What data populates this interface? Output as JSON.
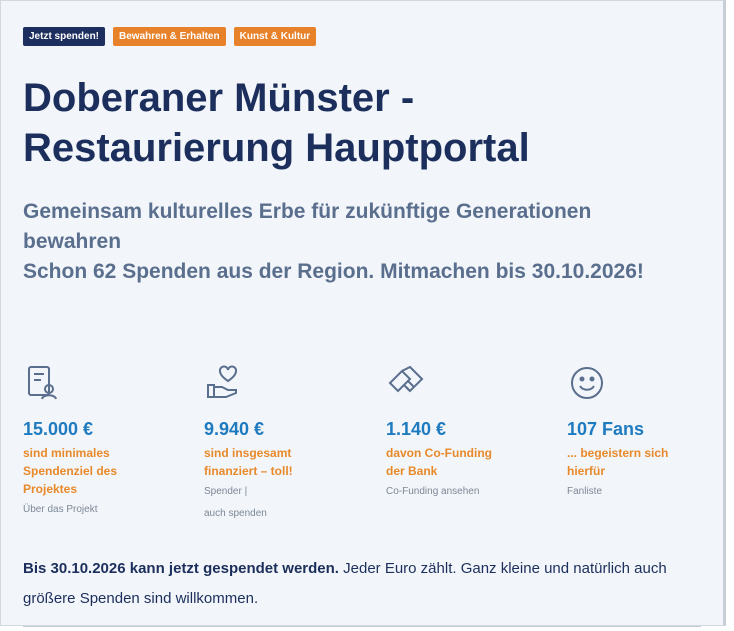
{
  "tags": [
    "Jetzt spenden!",
    "Bewahren & Erhalten",
    "Kunst & Kultur"
  ],
  "title": "Doberaner Münster - Restaurierung Hauptportal",
  "subtitle": "Gemeinsam kulturelles Erbe für zukünftige Generationen bewahren",
  "info": "Schon 62 Spenden aus der Region. Mitmachen bis 30.10.2026!",
  "stats": [
    {
      "value": "15.000 €",
      "label": "sind minimales Spendenziel des Projektes",
      "links": [
        "Über das Projekt"
      ]
    },
    {
      "value": "9.940 €",
      "label": "sind insgesamt finanziert – toll!",
      "links": [
        "Spender |",
        "auch spenden"
      ]
    },
    {
      "value": "1.140 €",
      "label": "davon Co-Funding der Bank",
      "links": [
        "Co-Funding ansehen"
      ]
    },
    {
      "value": "107 Fans",
      "label": "... begeistern sich hierfür",
      "links": [
        "Fanliste"
      ]
    }
  ],
  "footer": {
    "bold": "Bis 30.10.2026 kann jetzt gespendet werden.",
    "text": " Jeder Euro zählt. Ganz kleine und natürlich auch größere Spenden sind willkommen."
  }
}
